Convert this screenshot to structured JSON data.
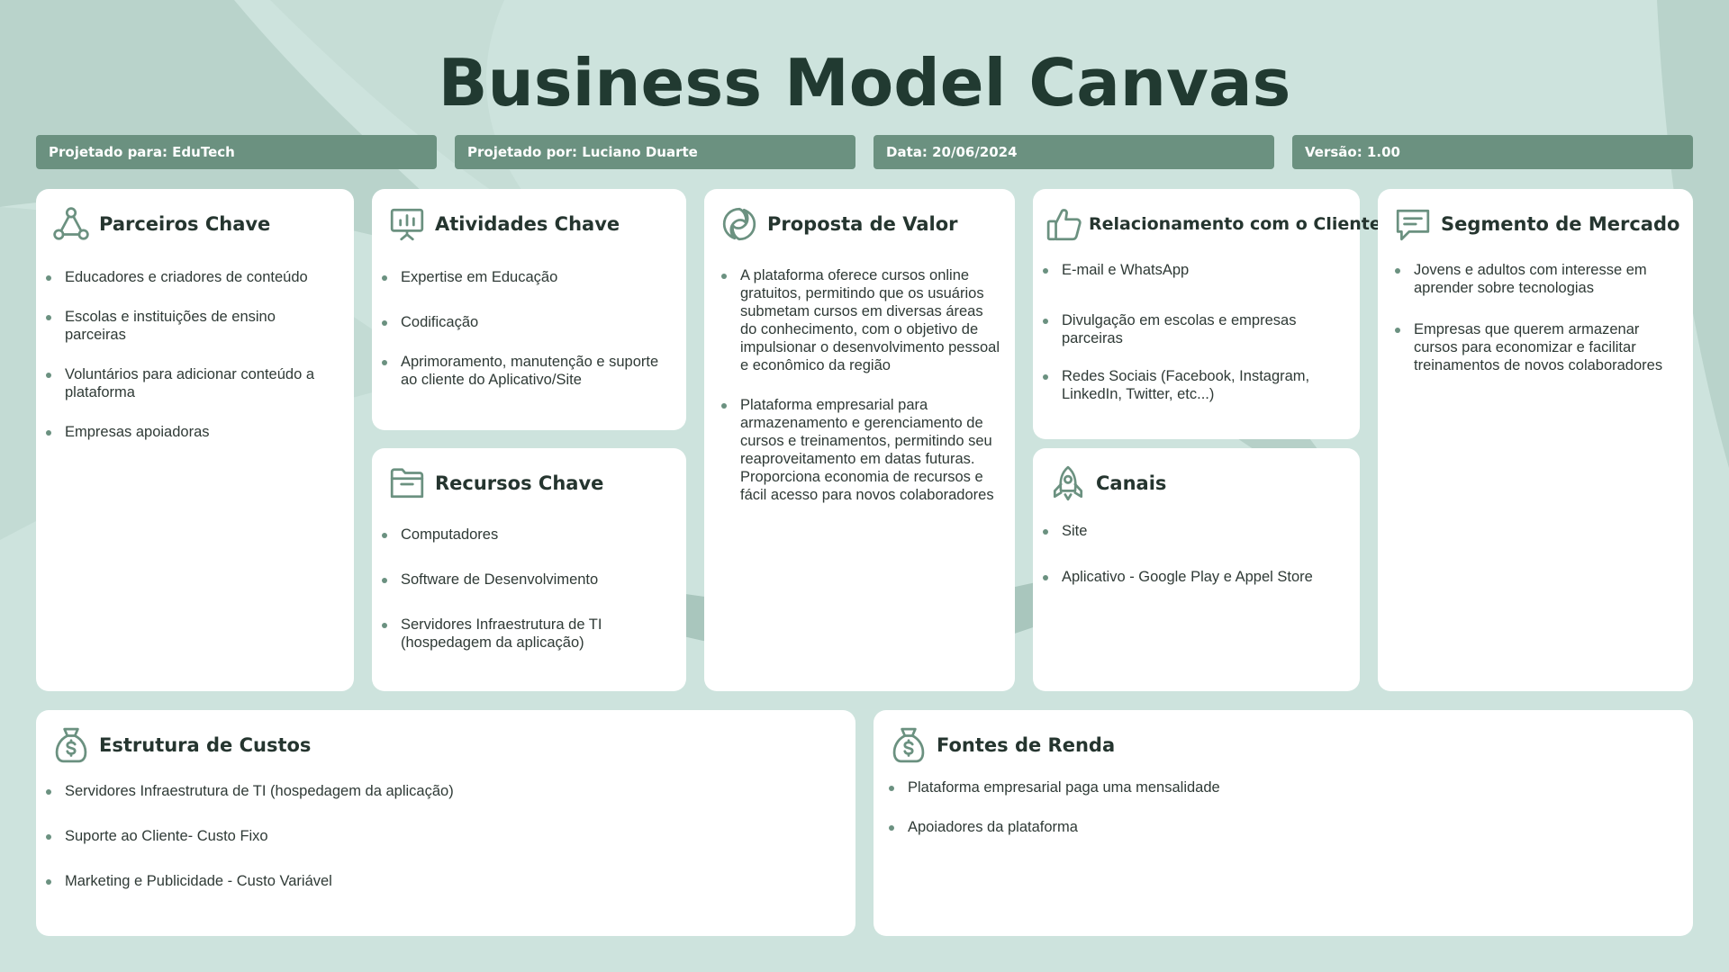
{
  "title": "Business Model Canvas",
  "meta": {
    "designed_for": "Projetado para: EduTech",
    "designed_by": "Projetado por: Luciano Duarte",
    "date": "Data: 20/06/2024",
    "version": "Versão: 1.00"
  },
  "colors": {
    "background": "#cde3dd",
    "accent": "#6b9180",
    "title": "#213a31",
    "card": "#ffffff"
  },
  "sections": {
    "partners": {
      "title": "Parceiros Chave",
      "icon": "network-icon",
      "items": [
        "Educadores e criadores de conteúdo",
        "Escolas e instituições de ensino parceiras",
        "Voluntários para adicionar conteúdo a plataforma",
        "Empresas apoiadoras"
      ]
    },
    "activities": {
      "title": "Atividades Chave",
      "icon": "presentation-chart-icon",
      "items": [
        "Expertise em Educação",
        "Codificação",
        "Aprimoramento, manutenção e suporte ao cliente do Aplicativo/Site"
      ]
    },
    "resources": {
      "title": "Recursos Chave",
      "icon": "folder-icon",
      "items": [
        "Computadores",
        "Software de Desenvolvimento",
        "Servidores Infraestrutura de TI (hospedagem da aplicação)"
      ]
    },
    "value": {
      "title": "Proposta de Valor",
      "icon": "refresh-swirl-icon",
      "items": [
        "A plataforma oferece cursos online gratuitos, permitindo que os usuários submetam cursos em diversas áreas do conhecimento, com o objetivo de impulsionar o desenvolvimento pessoal e econômico da região",
        "Plataforma empresarial para armazenamento e gerenciamento de cursos e treinamentos, permitindo seu reaproveitamento em datas futuras. Proporciona economia de recursos e fácil acesso para novos colaboradores"
      ]
    },
    "relationship": {
      "title": "Relacionamento com o Cliente",
      "icon": "thumbs-up-icon",
      "items": [
        "E-mail e WhatsApp",
        "Divulgação em escolas e empresas parceiras",
        "Redes Sociais (Facebook, Instagram, LinkedIn, Twitter, etc...)"
      ]
    },
    "channels": {
      "title": "Canais",
      "icon": "rocket-icon",
      "items": [
        "Site",
        "Aplicativo - Google Play e Appel Store"
      ]
    },
    "segments": {
      "title": "Segmento de Mercado",
      "icon": "chat-bubble-icon",
      "items": [
        "Jovens e adultos com interesse em aprender sobre tecnologias",
        "Empresas que querem armazenar cursos para  economizar e facilitar treinamentos de novos colaboradores"
      ]
    },
    "costs": {
      "title": "Estrutura de Custos",
      "icon": "money-bag-icon",
      "items": [
        "Servidores Infraestrutura de TI (hospedagem da aplicação)",
        "Suporte ao Cliente- Custo Fixo",
        "Marketing e Publicidade - Custo Variável"
      ]
    },
    "revenue": {
      "title": "Fontes de Renda",
      "icon": "money-bag-icon",
      "items": [
        "Plataforma empresarial paga uma mensalidade",
        "Apoiadores da plataforma"
      ]
    }
  }
}
